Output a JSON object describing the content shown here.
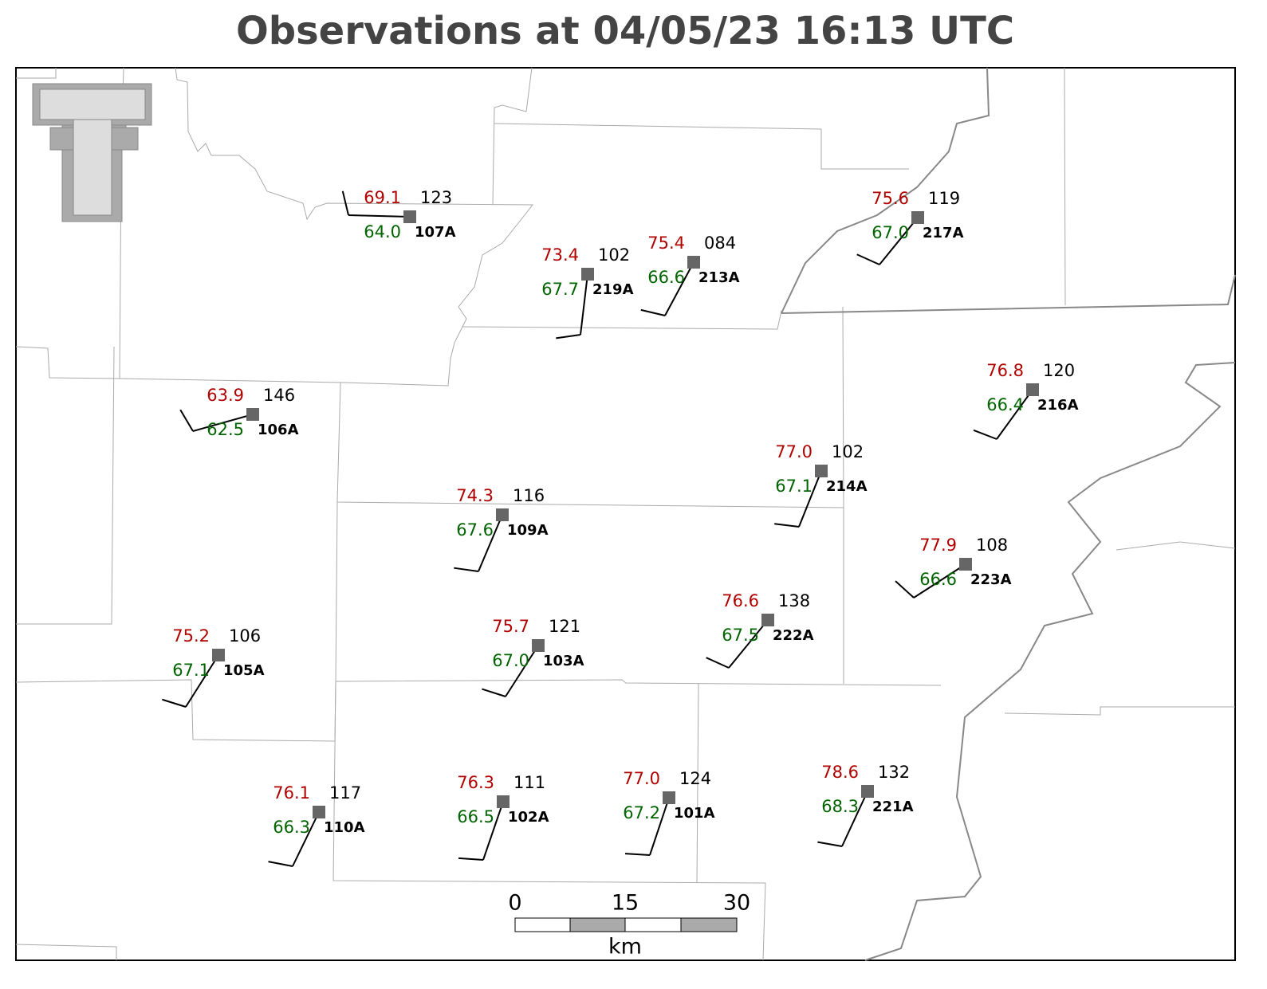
{
  "title": "Observations at 04/05/23 16:13 UTC",
  "stations": [
    {
      "id": "107A",
      "temperature": "69.1",
      "dewpoint": "64.0",
      "pressure": "123"
    },
    {
      "id": "219A",
      "temperature": "73.4",
      "dewpoint": "67.7",
      "pressure": "102"
    },
    {
      "id": "213A",
      "temperature": "75.4",
      "dewpoint": "66.6",
      "pressure": "084"
    },
    {
      "id": "217A",
      "temperature": "75.6",
      "dewpoint": "67.0",
      "pressure": "119"
    },
    {
      "id": "106A",
      "temperature": "63.9",
      "dewpoint": "62.5",
      "pressure": "146"
    },
    {
      "id": "216A",
      "temperature": "76.8",
      "dewpoint": "66.4",
      "pressure": "120"
    },
    {
      "id": "214A",
      "temperature": "77.0",
      "dewpoint": "67.1",
      "pressure": "102"
    },
    {
      "id": "109A",
      "temperature": "74.3",
      "dewpoint": "67.6",
      "pressure": "116"
    },
    {
      "id": "223A",
      "temperature": "77.9",
      "dewpoint": "66.6",
      "pressure": "108"
    },
    {
      "id": "222A",
      "temperature": "76.6",
      "dewpoint": "67.5",
      "pressure": "138"
    },
    {
      "id": "103A",
      "temperature": "75.7",
      "dewpoint": "67.0",
      "pressure": "121"
    },
    {
      "id": "105A",
      "temperature": "75.2",
      "dewpoint": "67.1",
      "pressure": "106"
    },
    {
      "id": "110A",
      "temperature": "76.1",
      "dewpoint": "66.3",
      "pressure": "117"
    },
    {
      "id": "102A",
      "temperature": "76.3",
      "dewpoint": "66.5",
      "pressure": "111"
    },
    {
      "id": "101A",
      "temperature": "77.0",
      "dewpoint": "67.2",
      "pressure": "124"
    },
    {
      "id": "221A",
      "temperature": "78.6",
      "dewpoint": "68.3",
      "pressure": "132"
    }
  ],
  "scale_bar": {
    "ticks": [
      "0",
      "15",
      "30"
    ],
    "unit": "km"
  }
}
